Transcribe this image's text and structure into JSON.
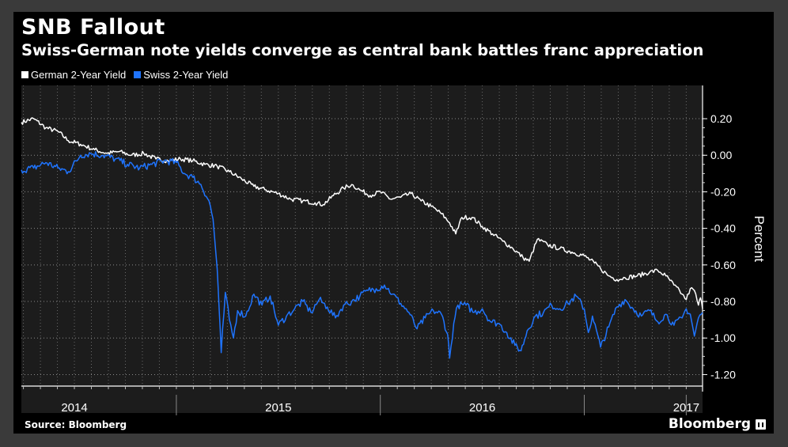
{
  "chart_data": {
    "type": "line",
    "title": "SNB Fallout",
    "subtitle": "Swiss-German note yields converge as central bank battles franc appreciation",
    "ylabel": "Percent",
    "xlabel": "",
    "ylim": [
      -1.25,
      0.33
    ],
    "yticks": [
      0.2,
      0.0,
      -0.2,
      -0.4,
      -0.6,
      -0.8,
      -1.0,
      -1.2
    ],
    "ytick_labels": [
      "0.20",
      "0.00",
      "-0.20",
      "-0.40",
      "-0.60",
      "-0.80",
      "-1.00",
      "-1.20"
    ],
    "xlim": [
      2013.74,
      2017.08
    ],
    "year_labels": [
      {
        "label": "2014",
        "x": 2014.0
      },
      {
        "label": "2015",
        "x": 2015.0
      },
      {
        "label": "2016",
        "x": 2016.0
      },
      {
        "label": "2017",
        "x": 2017.0
      }
    ],
    "year_boundaries": [
      2014.5,
      2015.5,
      2016.5,
      2017.0
    ],
    "grid": true,
    "legend_position": "top-left",
    "series": [
      {
        "name": "German 2-Year Yield",
        "color": "#ffffff",
        "points": [
          [
            2013.74,
            0.18
          ],
          [
            2013.8,
            0.2
          ],
          [
            2013.86,
            0.15
          ],
          [
            2013.92,
            0.13
          ],
          [
            2013.97,
            0.08
          ],
          [
            2014.03,
            0.06
          ],
          [
            2014.1,
            0.03
          ],
          [
            2014.16,
            0.01
          ],
          [
            2014.22,
            0.02
          ],
          [
            2014.28,
            0.0
          ],
          [
            2014.34,
            0.01
          ],
          [
            2014.4,
            -0.02
          ],
          [
            2014.46,
            -0.03
          ],
          [
            2014.52,
            -0.02
          ],
          [
            2014.58,
            -0.03
          ],
          [
            2014.64,
            -0.05
          ],
          [
            2014.7,
            -0.06
          ],
          [
            2014.76,
            -0.09
          ],
          [
            2014.82,
            -0.13
          ],
          [
            2014.88,
            -0.17
          ],
          [
            2014.94,
            -0.19
          ],
          [
            2015.0,
            -0.21
          ],
          [
            2015.06,
            -0.24
          ],
          [
            2015.12,
            -0.25
          ],
          [
            2015.18,
            -0.26
          ],
          [
            2015.22,
            -0.27
          ],
          [
            2015.27,
            -0.22
          ],
          [
            2015.32,
            -0.18
          ],
          [
            2015.36,
            -0.16
          ],
          [
            2015.4,
            -0.19
          ],
          [
            2015.45,
            -0.22
          ],
          [
            2015.5,
            -0.2
          ],
          [
            2015.55,
            -0.24
          ],
          [
            2015.6,
            -0.23
          ],
          [
            2015.65,
            -0.21
          ],
          [
            2015.7,
            -0.25
          ],
          [
            2015.75,
            -0.28
          ],
          [
            2015.8,
            -0.32
          ],
          [
            2015.84,
            -0.37
          ],
          [
            2015.87,
            -0.43
          ],
          [
            2015.9,
            -0.34
          ],
          [
            2015.95,
            -0.34
          ],
          [
            2016.0,
            -0.39
          ],
          [
            2016.05,
            -0.43
          ],
          [
            2016.1,
            -0.47
          ],
          [
            2016.15,
            -0.51
          ],
          [
            2016.2,
            -0.56
          ],
          [
            2016.23,
            -0.58
          ],
          [
            2016.27,
            -0.46
          ],
          [
            2016.32,
            -0.49
          ],
          [
            2016.38,
            -0.51
          ],
          [
            2016.44,
            -0.53
          ],
          [
            2016.5,
            -0.55
          ],
          [
            2016.55,
            -0.59
          ],
          [
            2016.58,
            -0.62
          ],
          [
            2016.62,
            -0.66
          ],
          [
            2016.66,
            -0.68
          ],
          [
            2016.7,
            -0.67
          ],
          [
            2016.76,
            -0.66
          ],
          [
            2016.82,
            -0.64
          ],
          [
            2016.86,
            -0.63
          ],
          [
            2016.9,
            -0.66
          ],
          [
            2016.94,
            -0.71
          ],
          [
            2016.98,
            -0.76
          ],
          [
            2017.0,
            -0.79
          ],
          [
            2017.02,
            -0.73
          ],
          [
            2017.04,
            -0.74
          ],
          [
            2017.06,
            -0.82
          ],
          [
            2017.07,
            -0.78
          ],
          [
            2017.08,
            -0.84
          ]
        ]
      },
      {
        "name": "Swiss 2-Year Yield",
        "color": "#1f74ff",
        "points": [
          [
            2013.74,
            -0.08
          ],
          [
            2013.8,
            -0.07
          ],
          [
            2013.86,
            -0.04
          ],
          [
            2013.92,
            -0.07
          ],
          [
            2013.97,
            -0.09
          ],
          [
            2014.03,
            0.0
          ],
          [
            2014.08,
            0.01
          ],
          [
            2014.14,
            0.0
          ],
          [
            2014.2,
            -0.02
          ],
          [
            2014.26,
            -0.05
          ],
          [
            2014.32,
            -0.07
          ],
          [
            2014.38,
            -0.05
          ],
          [
            2014.44,
            -0.03
          ],
          [
            2014.5,
            -0.04
          ],
          [
            2014.54,
            -0.1
          ],
          [
            2014.58,
            -0.12
          ],
          [
            2014.62,
            -0.16
          ],
          [
            2014.66,
            -0.25
          ],
          [
            2014.68,
            -0.35
          ],
          [
            2014.7,
            -0.62
          ],
          [
            2014.71,
            -0.85
          ],
          [
            2014.72,
            -1.08
          ],
          [
            2014.74,
            -0.75
          ],
          [
            2014.76,
            -0.9
          ],
          [
            2014.78,
            -1.0
          ],
          [
            2014.8,
            -0.85
          ],
          [
            2014.84,
            -0.88
          ],
          [
            2014.88,
            -0.76
          ],
          [
            2014.92,
            -0.82
          ],
          [
            2014.96,
            -0.77
          ],
          [
            2015.0,
            -0.93
          ],
          [
            2015.04,
            -0.88
          ],
          [
            2015.08,
            -0.84
          ],
          [
            2015.12,
            -0.8
          ],
          [
            2015.16,
            -0.86
          ],
          [
            2015.2,
            -0.79
          ],
          [
            2015.24,
            -0.83
          ],
          [
            2015.28,
            -0.89
          ],
          [
            2015.32,
            -0.82
          ],
          [
            2015.36,
            -0.8
          ],
          [
            2015.4,
            -0.77
          ],
          [
            2015.44,
            -0.74
          ],
          [
            2015.48,
            -0.73
          ],
          [
            2015.52,
            -0.71
          ],
          [
            2015.56,
            -0.76
          ],
          [
            2015.6,
            -0.81
          ],
          [
            2015.64,
            -0.86
          ],
          [
            2015.68,
            -0.95
          ],
          [
            2015.72,
            -0.89
          ],
          [
            2015.76,
            -0.85
          ],
          [
            2015.8,
            -0.87
          ],
          [
            2015.83,
            -0.98
          ],
          [
            2015.84,
            -1.11
          ],
          [
            2015.86,
            -0.92
          ],
          [
            2015.88,
            -0.82
          ],
          [
            2015.92,
            -0.82
          ],
          [
            2015.96,
            -0.86
          ],
          [
            2016.0,
            -0.84
          ],
          [
            2016.04,
            -0.91
          ],
          [
            2016.08,
            -0.92
          ],
          [
            2016.12,
            -0.97
          ],
          [
            2016.16,
            -1.04
          ],
          [
            2016.19,
            -1.07
          ],
          [
            2016.22,
            -0.96
          ],
          [
            2016.26,
            -0.88
          ],
          [
            2016.3,
            -0.86
          ],
          [
            2016.34,
            -0.82
          ],
          [
            2016.38,
            -0.84
          ],
          [
            2016.42,
            -0.81
          ],
          [
            2016.46,
            -0.77
          ],
          [
            2016.5,
            -0.84
          ],
          [
            2016.52,
            -0.97
          ],
          [
            2016.54,
            -0.88
          ],
          [
            2016.58,
            -1.05
          ],
          [
            2016.62,
            -0.94
          ],
          [
            2016.66,
            -0.83
          ],
          [
            2016.7,
            -0.79
          ],
          [
            2016.74,
            -0.84
          ],
          [
            2016.78,
            -0.88
          ],
          [
            2016.82,
            -0.85
          ],
          [
            2016.86,
            -0.91
          ],
          [
            2016.9,
            -0.87
          ],
          [
            2016.94,
            -0.93
          ],
          [
            2016.98,
            -0.89
          ],
          [
            2017.0,
            -0.84
          ],
          [
            2017.02,
            -0.87
          ],
          [
            2017.04,
            -0.99
          ],
          [
            2017.06,
            -0.89
          ],
          [
            2017.08,
            -0.86
          ]
        ]
      }
    ]
  },
  "footer": {
    "source": "Source: Bloomberg",
    "brand": "Bloomberg"
  }
}
